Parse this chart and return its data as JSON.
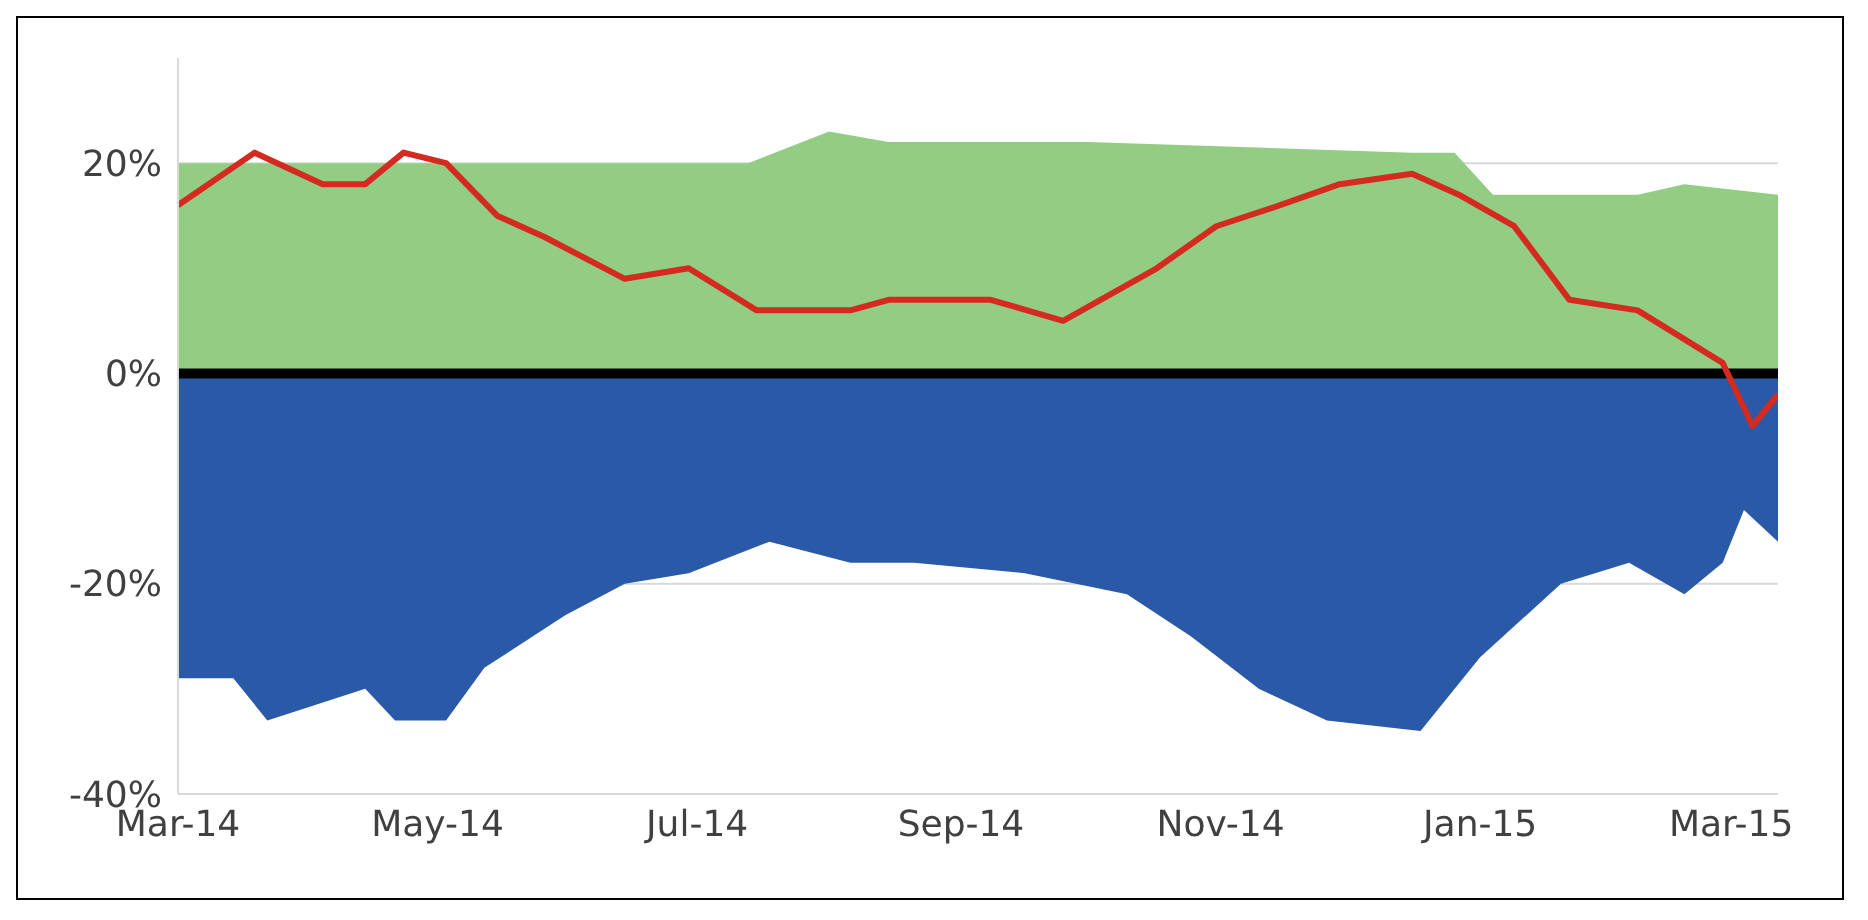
{
  "chart_data": {
    "type": "area",
    "xlim": [
      "2014-03-01",
      "2015-03-12"
    ],
    "xticks": [
      {
        "value": "2014-03-01",
        "label": "Mar-14"
      },
      {
        "value": "2014-05-01",
        "label": "May-14"
      },
      {
        "value": "2014-07-01",
        "label": "Jul-14"
      },
      {
        "value": "2014-09-01",
        "label": "Sep-14"
      },
      {
        "value": "2014-11-01",
        "label": "Nov-14"
      },
      {
        "value": "2015-01-01",
        "label": "Jan-15"
      },
      {
        "value": "2015-03-01",
        "label": "Mar-15"
      }
    ],
    "ylim": [
      -40,
      30
    ],
    "yticks": [
      {
        "value": -40,
        "label": "-40%"
      },
      {
        "value": -20,
        "label": "-20%"
      },
      {
        "value": 0,
        "label": "0%"
      },
      {
        "value": 20,
        "label": "20%"
      }
    ],
    "grid": "y",
    "ref_lines": [
      {
        "axis": "y",
        "value": 0,
        "color": "#000000"
      }
    ],
    "series": [
      {
        "color": "#93cd84",
        "x": [
          "2014-03-01",
          "2014-05-31",
          "2014-07-13",
          "2014-08-01",
          "2014-08-15",
          "2014-10-01",
          "2014-12-16",
          "2014-12-26",
          "2015-01-04",
          "2015-02-07",
          "2015-02-18",
          "2015-03-12"
        ],
        "values": [
          20,
          20,
          20,
          23,
          22,
          22,
          21,
          21,
          17,
          17,
          18,
          17
        ]
      },
      {
        "color": "#2a5aa7",
        "x": [
          "2014-03-01",
          "2014-03-14",
          "2014-03-22",
          "2014-04-14",
          "2014-04-21",
          "2014-05-03",
          "2014-05-12",
          "2014-05-31",
          "2014-06-14",
          "2014-06-29",
          "2014-07-18",
          "2014-08-06",
          "2014-08-21",
          "2014-09-16",
          "2014-10-10",
          "2014-10-25",
          "2014-11-10",
          "2014-11-26",
          "2014-12-18",
          "2015-01-01",
          "2015-01-20",
          "2015-02-05",
          "2015-02-18",
          "2015-02-27",
          "2015-03-04",
          "2015-03-12"
        ],
        "values": [
          -29,
          -29,
          -33,
          -30,
          -33,
          -33,
          -28,
          -23,
          -20,
          -19,
          -16,
          -18,
          -18,
          -19,
          -21,
          -25,
          -30,
          -33,
          -34,
          -27,
          -20,
          -18,
          -21,
          -18,
          -13,
          -16
        ]
      },
      {
        "type": "line",
        "color": "#d42a20",
        "x": [
          "2014-03-01",
          "2014-03-19",
          "2014-04-04",
          "2014-04-14",
          "2014-04-23",
          "2014-05-03",
          "2014-05-15",
          "2014-05-26",
          "2014-06-14",
          "2014-06-29",
          "2014-07-15",
          "2014-08-06",
          "2014-08-15",
          "2014-09-08",
          "2014-09-25",
          "2014-10-17",
          "2014-10-31",
          "2014-11-15",
          "2014-11-29",
          "2014-12-16",
          "2014-12-27",
          "2015-01-09",
          "2015-01-22",
          "2015-02-07",
          "2015-02-27",
          "2015-03-06",
          "2015-03-12"
        ],
        "values": [
          16,
          21,
          18,
          18,
          21,
          20,
          15,
          13,
          9,
          10,
          6,
          6,
          7,
          7,
          5,
          10,
          14,
          16,
          18,
          19,
          17,
          14,
          7,
          6,
          1,
          -5,
          -2
        ]
      }
    ]
  }
}
